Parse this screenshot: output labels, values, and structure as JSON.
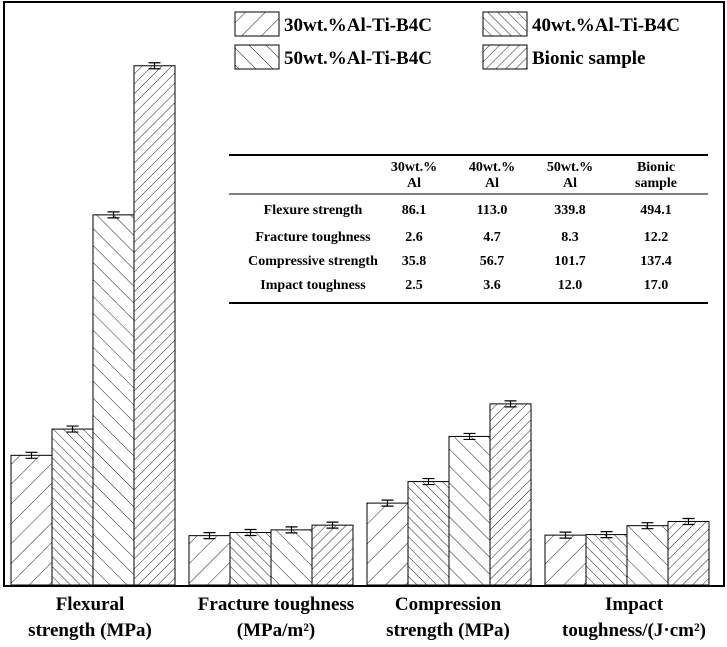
{
  "chart_data": {
    "type": "bar",
    "categories": [
      [
        "Flexural",
        "strength (MPa)"
      ],
      [
        "Fracture toughness",
        "(MPa/m²)"
      ],
      [
        "Compression",
        "strength (MPa)"
      ],
      [
        "Impact",
        "toughness/(J·cm²)"
      ]
    ],
    "series": [
      {
        "name": "30wt.%Al-Ti-B4C",
        "values": [
          86.1,
          2.6,
          35.8,
          2.5
        ]
      },
      {
        "name": "40wt.%Al-Ti-B4C",
        "values": [
          113.0,
          4.7,
          56.7,
          3.6
        ]
      },
      {
        "name": "50wt.%Al-Ti-B4C",
        "values": [
          339.8,
          8.3,
          101.7,
          12.0
        ]
      },
      {
        "name": "Bionic sample",
        "values": [
          494.1,
          12.2,
          137.4,
          17.0
        ]
      }
    ],
    "bar_heights_relative": [
      [
        0.247,
        0.094,
        0.156,
        0.095
      ],
      [
        0.297,
        0.1,
        0.197,
        0.096
      ],
      [
        0.705,
        0.105,
        0.283,
        0.113
      ],
      [
        0.989,
        0.114,
        0.345,
        0.121
      ]
    ],
    "legend_position": "top-right",
    "grid": false,
    "table": {
      "headers": [
        [
          "30wt.%",
          "Al"
        ],
        [
          "40wt.%",
          "Al"
        ],
        [
          "50wt.%",
          "Al"
        ],
        [
          "Bionic",
          "sample"
        ]
      ],
      "rows": [
        {
          "label": "Flexure strength",
          "values": [
            "86.1",
            "113.0",
            "339.8",
            "494.1"
          ]
        },
        {
          "label": "Fracture toughness",
          "values": [
            "2.6",
            "4.7",
            "8.3",
            "12.2"
          ]
        },
        {
          "label": "Compressive strength",
          "values": [
            "35.8",
            "56.7",
            "101.7",
            "137.4"
          ]
        },
        {
          "label": "Impact toughness",
          "values": [
            "2.5",
            "3.6",
            "12.0",
            "17.0"
          ]
        }
      ]
    }
  }
}
